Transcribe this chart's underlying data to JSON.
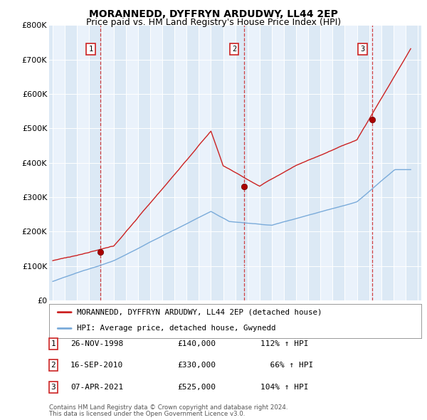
{
  "title": "MORANNEDD, DYFFRYN ARDUDWY, LL44 2EP",
  "subtitle": "Price paid vs. HM Land Registry's House Price Index (HPI)",
  "title_fontsize": 10,
  "subtitle_fontsize": 9,
  "ylim": [
    0,
    800000
  ],
  "yticks": [
    0,
    100000,
    200000,
    300000,
    400000,
    500000,
    600000,
    700000,
    800000
  ],
  "ytick_labels": [
    "£0",
    "£100K",
    "£200K",
    "£300K",
    "£400K",
    "£500K",
    "£600K",
    "£700K",
    "£800K"
  ],
  "background_color": "#ffffff",
  "plot_bg_color": "#dce9f5",
  "column_bg_even": "#dce9f5",
  "column_bg_odd": "#eaf2fb",
  "grid_color": "#ffffff",
  "red_color": "#cc2222",
  "blue_color": "#7aabda",
  "dashed_line_color": "#cc2222",
  "transactions": [
    {
      "num": 1,
      "date_label": "26-NOV-1998",
      "price": 140000,
      "pct": "112%",
      "sale_x": 1998.92
    },
    {
      "num": 2,
      "date_label": "16-SEP-2010",
      "price": 330000,
      "pct": "66%",
      "sale_x": 2010.71
    },
    {
      "num": 3,
      "date_label": "07-APR-2021",
      "price": 525000,
      "pct": "104%",
      "sale_x": 2021.27
    }
  ],
  "legend_line1": "MORANNEDD, DYFFRYN ARDUDWY, LL44 2EP (detached house)",
  "legend_line2": "HPI: Average price, detached house, Gwynedd",
  "footer1": "Contains HM Land Registry data © Crown copyright and database right 2024.",
  "footer2": "This data is licensed under the Open Government Licence v3.0.",
  "xmin": 1995,
  "xmax": 2025
}
